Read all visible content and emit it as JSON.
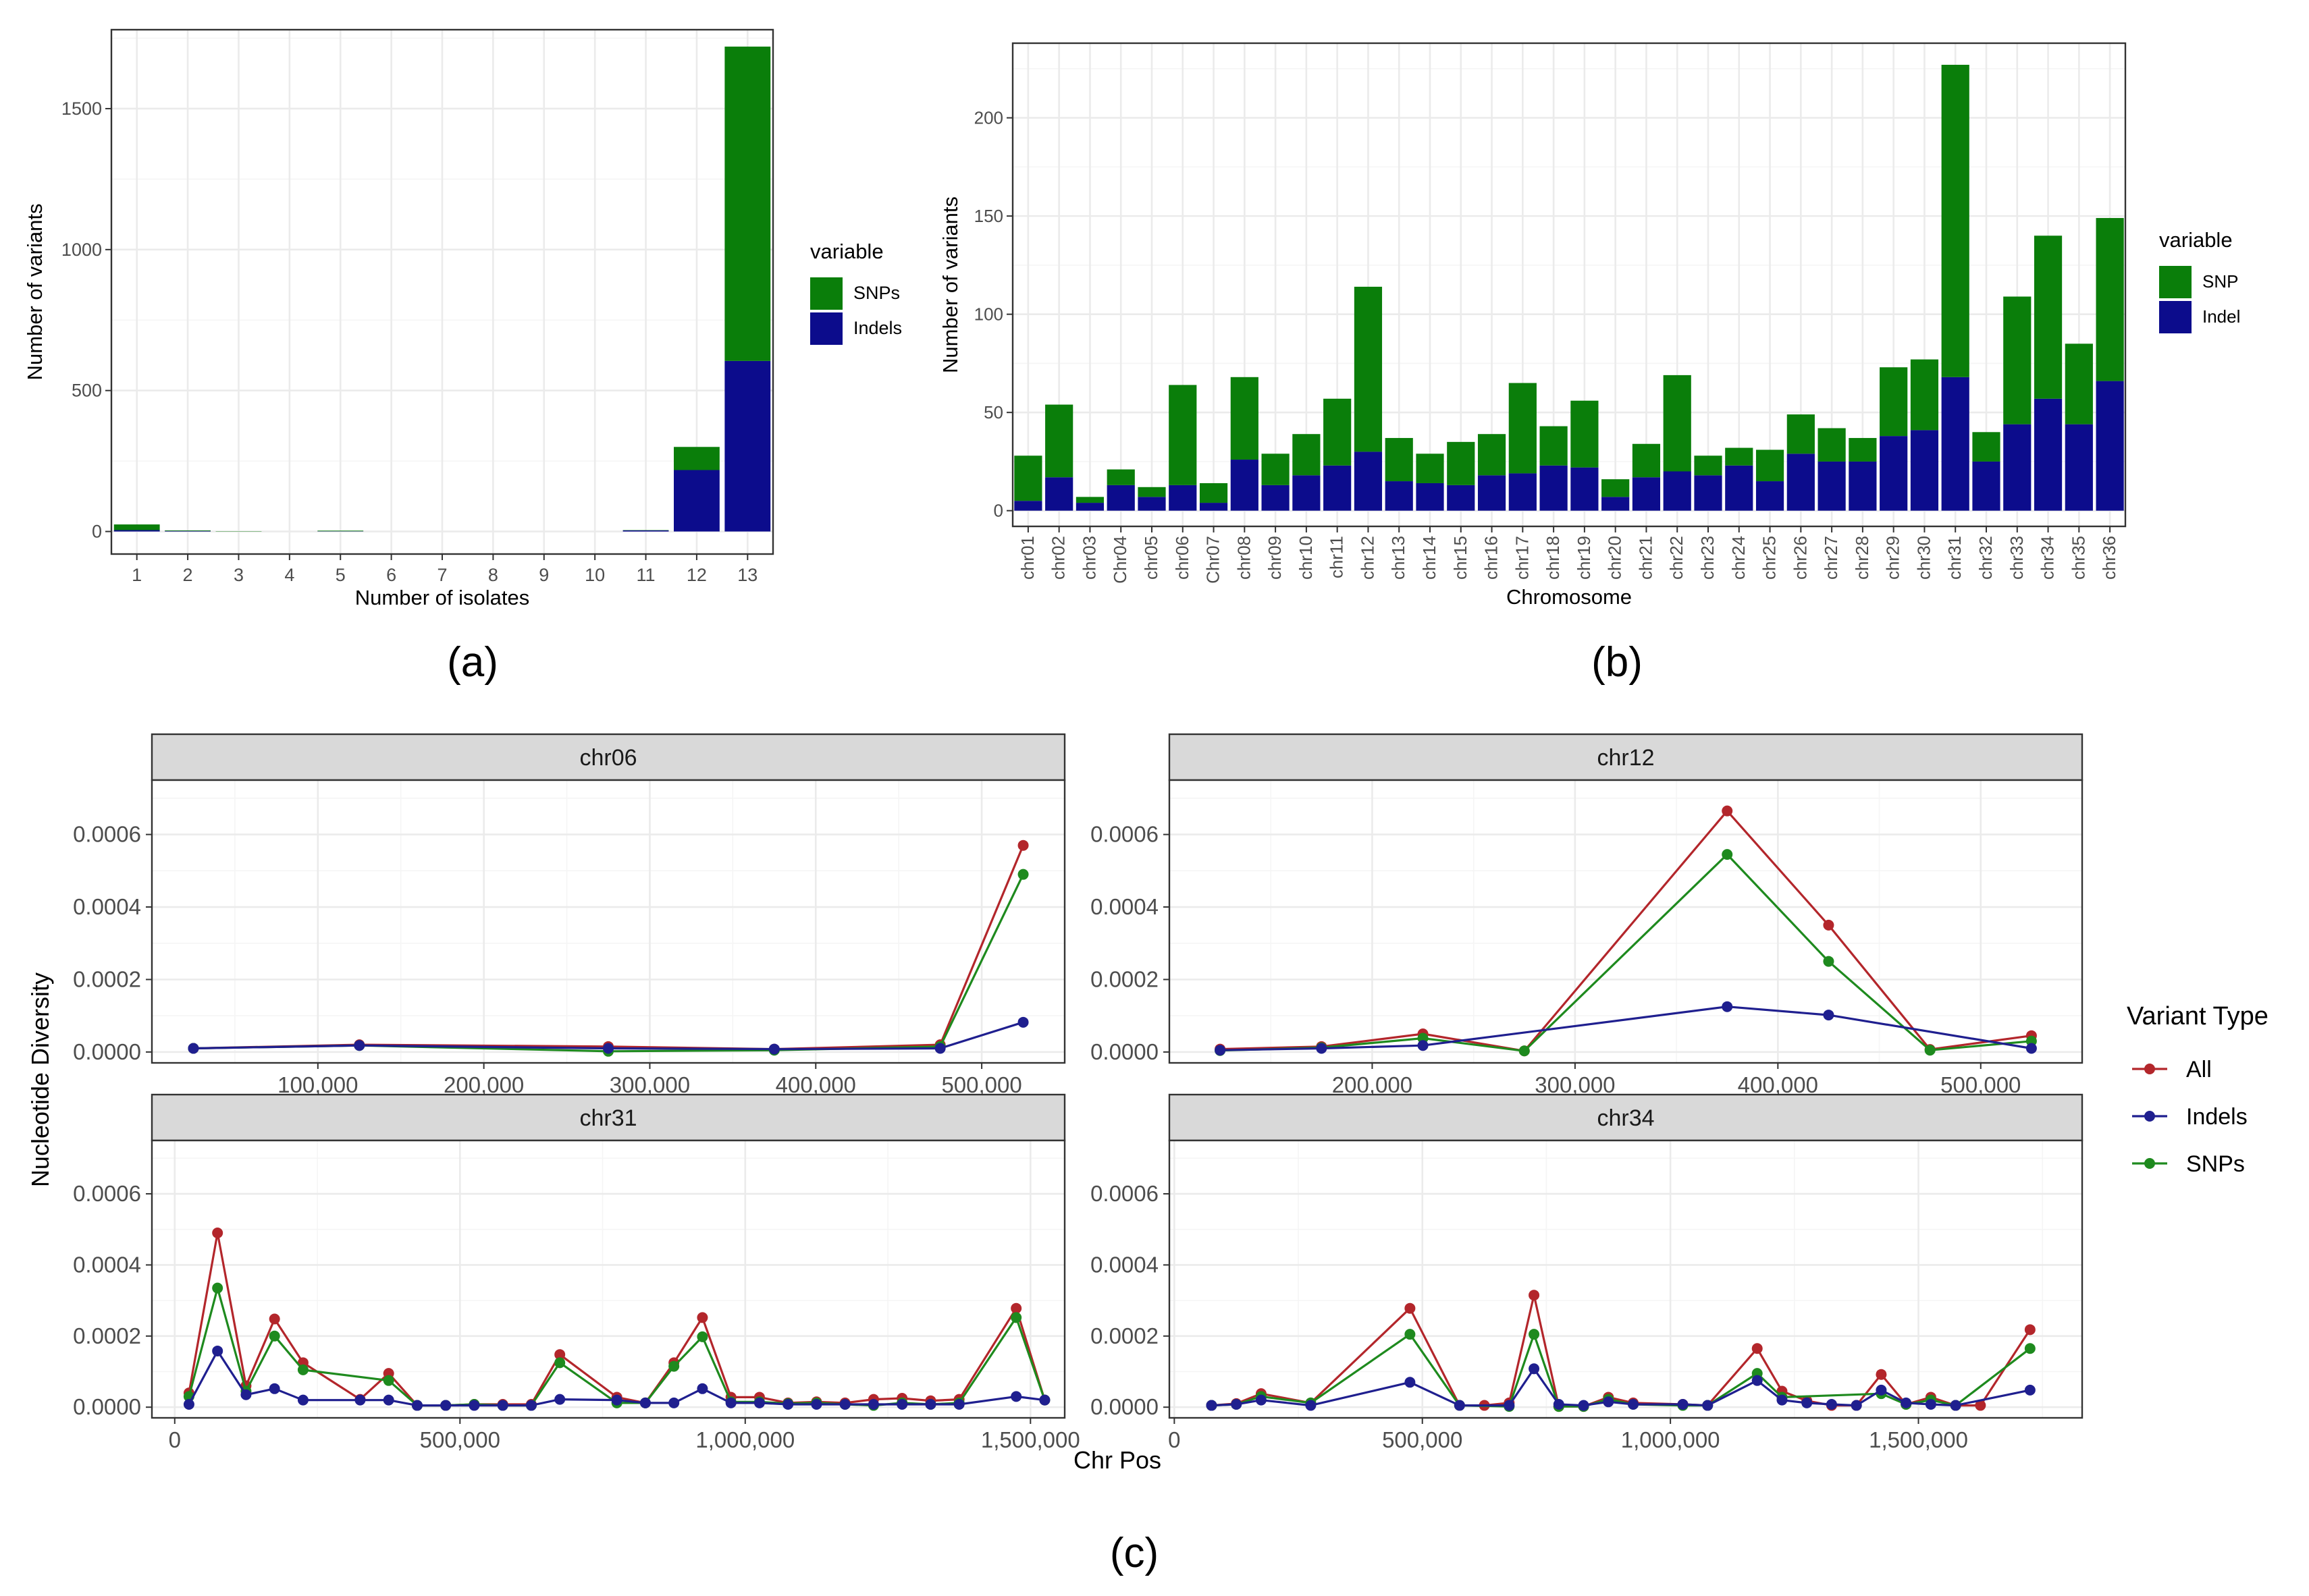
{
  "colors": {
    "snp": "#0a7e0a",
    "indel": "#0c0c8c",
    "all": "#b3262b",
    "indels_line": "#1f1f8f",
    "snps_line": "#1e8a1e",
    "grid_major": "#ebebeb",
    "grid_minor": "#f5f5f5",
    "axis_text": "#4d4d4d",
    "strip_fill": "#d9d9d9"
  },
  "chart_data": [
    {
      "id": "a",
      "panel_label": "(a)",
      "type": "bar",
      "stacked": true,
      "xlabel": "Number of isolates",
      "ylabel": "Number of variants",
      "categories": [
        "1",
        "2",
        "3",
        "4",
        "5",
        "6",
        "7",
        "8",
        "9",
        "10",
        "11",
        "12",
        "13"
      ],
      "ylim": [
        -80,
        1780
      ],
      "yticks": [
        0,
        500,
        1000,
        1500
      ],
      "series": [
        {
          "name": "Indels",
          "values": [
            5,
            2,
            0,
            0,
            1,
            0,
            0,
            0,
            0,
            0,
            4,
            218,
            605
          ]
        },
        {
          "name": "SNPs",
          "values": [
            20,
            2,
            1,
            0,
            2,
            0,
            0,
            0,
            0,
            0,
            1,
            82,
            1115
          ]
        }
      ],
      "legend": {
        "title": "variable",
        "entries": [
          "SNPs",
          "Indels"
        ],
        "position": "right"
      }
    },
    {
      "id": "b",
      "panel_label": "(b)",
      "type": "bar",
      "stacked": true,
      "xlabel": "Chromosome",
      "ylabel": "Number of variants",
      "categories": [
        "chr01",
        "chr02",
        "chr03",
        "Chr04",
        "chr05",
        "chr06",
        "Chr07",
        "chr08",
        "chr09",
        "chr10",
        "chr11",
        "chr12",
        "chr13",
        "chr14",
        "chr15",
        "chr16",
        "chr17",
        "chr18",
        "chr19",
        "chr20",
        "chr21",
        "chr22",
        "chr23",
        "chr24",
        "chr25",
        "chr26",
        "chr27",
        "chr28",
        "chr29",
        "chr30",
        "chr31",
        "chr32",
        "chr33",
        "chr34",
        "chr35",
        "chr36"
      ],
      "ylim": [
        -8,
        238
      ],
      "yticks": [
        0,
        50,
        100,
        150,
        200
      ],
      "series": [
        {
          "name": "Indel",
          "values": [
            5,
            17,
            4,
            13,
            7,
            13,
            4,
            26,
            13,
            18,
            23,
            30,
            15,
            14,
            13,
            18,
            19,
            23,
            22,
            7,
            17,
            20,
            18,
            23,
            15,
            29,
            25,
            25,
            38,
            41,
            68,
            25,
            44,
            57,
            44,
            66
          ]
        },
        {
          "name": "SNP",
          "values": [
            23,
            37,
            3,
            8,
            5,
            51,
            10,
            42,
            16,
            21,
            34,
            84,
            22,
            15,
            22,
            21,
            46,
            20,
            34,
            9,
            17,
            49,
            10,
            9,
            16,
            20,
            17,
            12,
            35,
            36,
            159,
            15,
            65,
            83,
            41,
            83
          ]
        }
      ],
      "legend": {
        "title": "variable",
        "entries": [
          "SNP",
          "Indel"
        ],
        "position": "right"
      }
    },
    {
      "id": "c",
      "panel_label": "(c)",
      "type": "line",
      "xlabel": "Chr Pos",
      "ylabel": "Nucleotide Diversity",
      "ylim": [
        -3e-05,
        0.00075
      ],
      "yticks": [
        0,
        0.0002,
        0.0004,
        0.0006
      ],
      "ytick_labels": [
        "0.0000",
        "0.0002",
        "0.0004",
        "0.0006"
      ],
      "legend": {
        "title": "Variant Type",
        "entries": [
          "All",
          "Indels",
          "SNPs"
        ],
        "position": "right"
      },
      "facets": [
        {
          "title": "chr06",
          "xlim": [
            0,
            550000
          ],
          "xticks": [
            100000,
            200000,
            300000,
            400000,
            500000
          ],
          "xtick_labels": [
            "100,000",
            "200,000",
            "300,000",
            "400,000",
            "500,000"
          ],
          "series": [
            {
              "name": "All",
              "x": [
                25000,
                125000,
                275000,
                375000,
                475000,
                525000
              ],
              "y": [
                1e-05,
                2e-05,
                1.5e-05,
                8e-06,
                2e-05,
                0.00057
              ]
            },
            {
              "name": "Indels",
              "x": [
                25000,
                125000,
                275000,
                375000,
                475000,
                525000
              ],
              "y": [
                1e-05,
                1.8e-05,
                1e-05,
                8e-06,
                1e-05,
                8.2e-05
              ]
            },
            {
              "name": "SNPs",
              "x": [
                25000,
                125000,
                275000,
                375000,
                475000,
                525000
              ],
              "y": [
                1e-05,
                1.8e-05,
                2e-06,
                5e-06,
                1.5e-05,
                0.00049
              ]
            }
          ]
        },
        {
          "title": "chr12",
          "xlim": [
            100000,
            550000
          ],
          "xticks": [
            200000,
            300000,
            400000,
            500000
          ],
          "xtick_labels": [
            "200,000",
            "300,000",
            "400,000",
            "500,000"
          ],
          "series": [
            {
              "name": "All",
              "x": [
                125000,
                175000,
                225000,
                275000,
                375000,
                425000,
                475000,
                525000
              ],
              "y": [
                8e-06,
                1.5e-05,
                5e-05,
                3e-06,
                0.000665,
                0.00035,
                7e-06,
                4.5e-05
              ]
            },
            {
              "name": "Indels",
              "x": [
                125000,
                175000,
                225000,
                375000,
                425000,
                525000
              ],
              "y": [
                5e-06,
                1e-05,
                1.8e-05,
                0.000125,
                0.000102,
                1e-05
              ]
            },
            {
              "name": "SNPs",
              "x": [
                125000,
                175000,
                225000,
                275000,
                375000,
                425000,
                475000,
                525000
              ],
              "y": [
                4e-06,
                1.2e-05,
                3.8e-05,
                3e-06,
                0.000545,
                0.00025,
                5e-06,
                3e-05
              ]
            }
          ]
        },
        {
          "title": "chr31",
          "xlim": [
            -40000,
            1560000
          ],
          "xticks": [
            0,
            500000,
            1000000,
            1500000
          ],
          "xtick_labels": [
            "0",
            "500,000",
            "1,000,000",
            "1,500,000"
          ],
          "series": [
            {
              "name": "All",
              "x": [
                25000,
                75000,
                125000,
                175000,
                225000,
                325000,
                375000,
                425000,
                475000,
                525000,
                575000,
                625000,
                675000,
                775000,
                825000,
                875000,
                925000,
                975000,
                1025000,
                1075000,
                1125000,
                1175000,
                1225000,
                1275000,
                1325000,
                1375000,
                1475000,
                1525000
              ],
              "y": [
                4e-05,
                0.00049,
                6e-05,
                0.000248,
                0.000125,
                2.2e-05,
                9.5e-05,
                5e-06,
                5e-06,
                8e-06,
                8e-06,
                8e-06,
                0.000148,
                2.8e-05,
                1.2e-05,
                0.000125,
                0.000252,
                2.8e-05,
                2.8e-05,
                1.2e-05,
                1.5e-05,
                1.2e-05,
                2.2e-05,
                2.5e-05,
                1.8e-05,
                2.2e-05,
                0.000278,
                2e-05
              ]
            },
            {
              "name": "Indels",
              "x": [
                25000,
                75000,
                125000,
                175000,
                225000,
                325000,
                375000,
                425000,
                475000,
                525000,
                575000,
                625000,
                675000,
                775000,
                825000,
                875000,
                925000,
                975000,
                1025000,
                1075000,
                1125000,
                1175000,
                1225000,
                1275000,
                1325000,
                1375000,
                1475000,
                1525000
              ],
              "y": [
                8e-06,
                0.000158,
                3.5e-05,
                5.2e-05,
                2e-05,
                2e-05,
                2e-05,
                5e-06,
                5e-06,
                5e-06,
                5e-06,
                5e-06,
                2.2e-05,
                2e-05,
                1.2e-05,
                1.2e-05,
                5.2e-05,
                1.2e-05,
                1.2e-05,
                8e-06,
                8e-06,
                8e-06,
                8e-06,
                8e-06,
                8e-06,
                8e-06,
                3e-05,
                2e-05
              ]
            },
            {
              "name": "SNPs",
              "x": [
                25000,
                75000,
                125000,
                175000,
                225000,
                375000,
                425000,
                475000,
                525000,
                575000,
                625000,
                675000,
                775000,
                825000,
                875000,
                925000,
                975000,
                1025000,
                1075000,
                1125000,
                1175000,
                1225000,
                1275000,
                1325000,
                1375000,
                1475000,
                1525000
              ],
              "y": [
                3e-05,
                0.000335,
                4.5e-05,
                0.0002,
                0.000105,
                7.5e-05,
                5e-06,
                5e-06,
                8e-06,
                5e-06,
                5e-06,
                0.000125,
                1.2e-05,
                1.2e-05,
                0.000115,
                0.000198,
                1.5e-05,
                1.5e-05,
                1e-05,
                1.2e-05,
                8e-06,
                5e-06,
                1.2e-05,
                8e-06,
                1.2e-05,
                0.000252,
                2e-05
              ]
            }
          ]
        },
        {
          "title": "chr34",
          "xlim": [
            -10000,
            1830000
          ],
          "xticks": [
            0,
            500000,
            1000000,
            1500000
          ],
          "xtick_labels": [
            "0",
            "500,000",
            "1,000,000",
            "1,500,000"
          ],
          "series": [
            {
              "name": "All",
              "x": [
                75000,
                125000,
                175000,
                275000,
                475000,
                575000,
                625000,
                675000,
                725000,
                775000,
                825000,
                875000,
                925000,
                1025000,
                1075000,
                1175000,
                1225000,
                1275000,
                1325000,
                1375000,
                1425000,
                1475000,
                1525000,
                1575000,
                1625000,
                1725000
              ],
              "y": [
                5e-06,
                1e-05,
                3.8e-05,
                1.2e-05,
                0.000278,
                5e-06,
                5e-06,
                1.2e-05,
                0.000315,
                2e-06,
                2e-06,
                2.8e-05,
                1.2e-05,
                8e-06,
                5e-06,
                0.000165,
                4.5e-05,
                1.8e-05,
                5e-06,
                5e-06,
                9.2e-05,
                8e-06,
                2.8e-05,
                5e-06,
                5e-06,
                0.000218
              ]
            },
            {
              "name": "Indels",
              "x": [
                75000,
                125000,
                175000,
                275000,
                475000,
                575000,
                675000,
                725000,
                775000,
                825000,
                875000,
                925000,
                1025000,
                1075000,
                1175000,
                1225000,
                1275000,
                1325000,
                1375000,
                1425000,
                1475000,
                1525000,
                1575000,
                1725000
              ],
              "y": [
                5e-06,
                8e-06,
                2e-05,
                5e-06,
                7e-05,
                5e-06,
                5e-06,
                0.000108,
                8e-06,
                5e-06,
                1.5e-05,
                8e-06,
                8e-06,
                5e-06,
                7.5e-05,
                2e-05,
                1.2e-05,
                8e-06,
                5e-06,
                4.8e-05,
                1.2e-05,
                8e-06,
                5e-06,
                4.8e-05
              ]
            },
            {
              "name": "SNPs",
              "x": [
                75000,
                125000,
                175000,
                275000,
                475000,
                575000,
                675000,
                725000,
                775000,
                825000,
                875000,
                925000,
                1025000,
                1075000,
                1175000,
                1225000,
                1425000,
                1475000,
                1525000,
                1575000,
                1725000
              ],
              "y": [
                5e-06,
                8e-06,
                3e-05,
                1.2e-05,
                0.000205,
                5e-06,
                2e-06,
                0.000205,
                2e-06,
                2e-06,
                2.2e-05,
                8e-06,
                5e-06,
                5e-06,
                9.5e-05,
                2.8e-05,
                3.8e-05,
                8e-06,
                2e-05,
                5e-06,
                0.000165
              ]
            }
          ]
        }
      ]
    }
  ]
}
